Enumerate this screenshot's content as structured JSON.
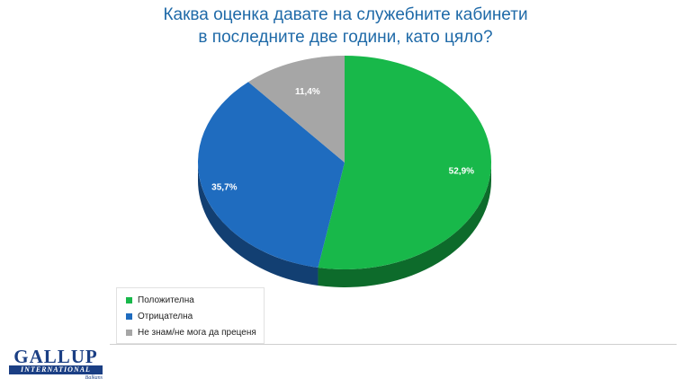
{
  "chart_data": {
    "type": "pie",
    "title": "Каква оценка давате на служебните кабинети в последните две години, като цяло?",
    "title_lines": [
      "Каква оценка давате на служебните кабинети",
      "в последните две години, като цяло?"
    ],
    "style": "3d",
    "slices": [
      {
        "label": "Положителна",
        "value": 52.9,
        "value_label": "52,9%",
        "color": "#18b84a",
        "side_color": "#0d6b2b"
      },
      {
        "label": "Отрицателна",
        "value": 35.7,
        "value_label": "35,7%",
        "color": "#1f6cbf",
        "side_color": "#123f72"
      },
      {
        "label": "Не знам/не мога да преценя",
        "value": 11.4,
        "value_label": "11,4%",
        "color": "#a6a6a6",
        "side_color": "#6a6a6a"
      }
    ],
    "legend_position": "bottom-left"
  },
  "logo": {
    "main": "GALLUP",
    "bar": "INTERNATIONAL",
    "sub": "Balkans"
  }
}
